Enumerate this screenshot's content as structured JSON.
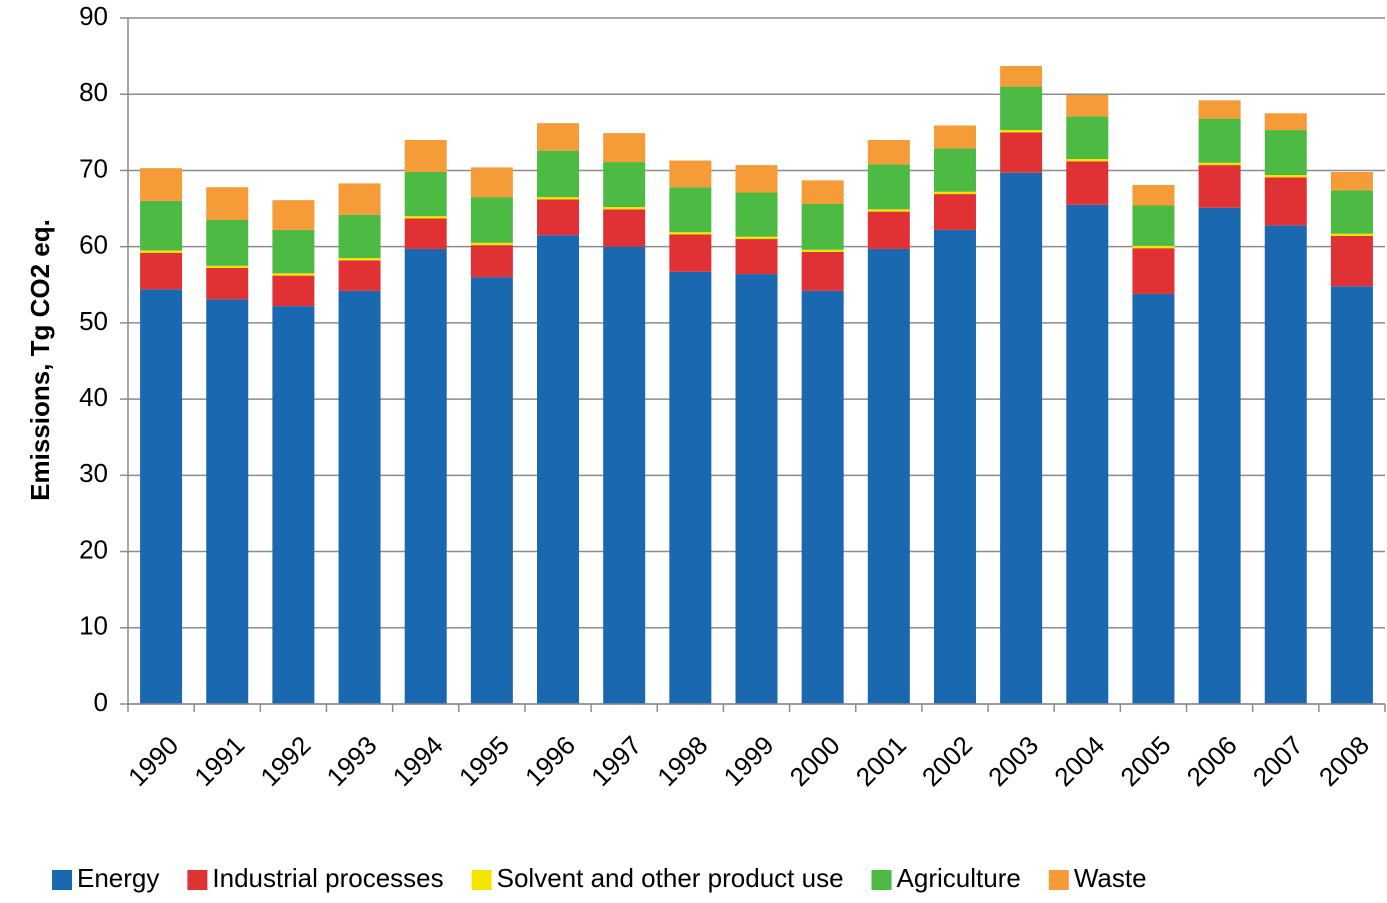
{
  "chart_data": {
    "type": "stacked_bar",
    "y_label": "Emissions, Tg CO2 eq.",
    "categories": [
      "1990",
      "1991",
      "1992",
      "1993",
      "1994",
      "1995",
      "1996",
      "1997",
      "1998",
      "1999",
      "2000",
      "2001",
      "2002",
      "2003",
      "2004",
      "2005",
      "2006",
      "2007",
      "2008"
    ],
    "series": [
      {
        "name": "Energy",
        "color": "#1a68b0",
        "values": [
          54.4,
          53.1,
          52.2,
          54.2,
          59.7,
          56.0,
          61.5,
          60.0,
          56.7,
          56.4,
          54.2,
          59.7,
          62.2,
          69.7,
          65.5,
          53.8,
          65.1,
          62.8,
          54.8
        ]
      },
      {
        "name": "Industrial processes",
        "color": "#e03235",
        "values": [
          4.8,
          4.1,
          4.0,
          4.0,
          4.0,
          4.2,
          4.7,
          4.9,
          4.9,
          4.6,
          5.1,
          4.9,
          4.7,
          5.3,
          5.7,
          6.0,
          5.6,
          6.3,
          6.6
        ]
      },
      {
        "name": "Solvent and other product use",
        "color": "#f5e400",
        "values": [
          0.3,
          0.3,
          0.3,
          0.3,
          0.3,
          0.3,
          0.3,
          0.3,
          0.3,
          0.3,
          0.3,
          0.3,
          0.3,
          0.3,
          0.3,
          0.3,
          0.3,
          0.3,
          0.3
        ]
      },
      {
        "name": "Agriculture",
        "color": "#4dba44",
        "values": [
          6.5,
          6.0,
          5.7,
          5.7,
          5.8,
          6.0,
          6.1,
          5.9,
          5.9,
          5.8,
          6.0,
          5.9,
          5.7,
          5.7,
          5.6,
          5.3,
          5.8,
          5.9,
          5.7
        ]
      },
      {
        "name": "Waste",
        "color": "#f59c38",
        "values": [
          4.3,
          4.3,
          3.9,
          4.1,
          4.2,
          3.9,
          3.6,
          3.8,
          3.5,
          3.6,
          3.1,
          3.2,
          3.0,
          2.7,
          2.8,
          2.7,
          2.4,
          2.2,
          2.4
        ]
      }
    ],
    "ylim": [
      0,
      90
    ],
    "yticks": [
      0,
      10,
      20,
      30,
      40,
      50,
      60,
      70,
      80,
      90
    ],
    "grid": true,
    "legend": "bottom"
  }
}
